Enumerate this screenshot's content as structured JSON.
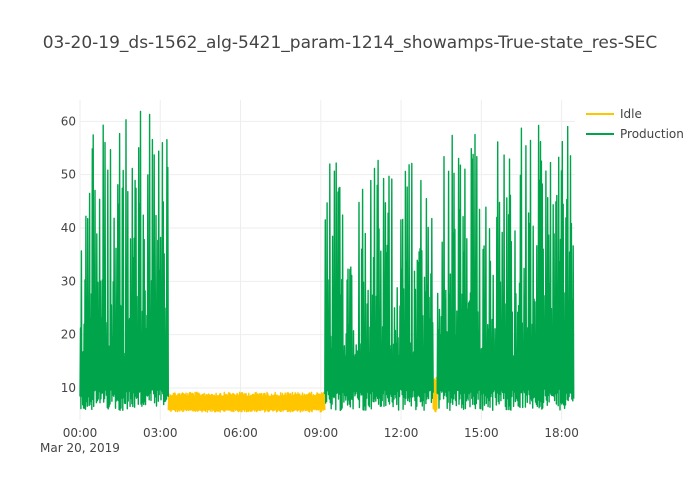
{
  "chart_data": {
    "type": "line",
    "title": "03-20-19_ds-1562_alg-5421_param-1214_showamps-True-state_res-SEC",
    "xlabel": "",
    "ylabel": "",
    "x_range_hours": [
      0,
      18.5
    ],
    "ylim": [
      4,
      64
    ],
    "x_ticks": [
      {
        "hours": 0,
        "label": "00:00"
      },
      {
        "hours": 3,
        "label": "03:00"
      },
      {
        "hours": 6,
        "label": "06:00"
      },
      {
        "hours": 9,
        "label": "09:00"
      },
      {
        "hours": 12,
        "label": "12:00"
      },
      {
        "hours": 15,
        "label": "15:00"
      },
      {
        "hours": 18,
        "label": "18:00"
      }
    ],
    "x_date_label": "Mar 20, 2019",
    "y_ticks": [
      10,
      20,
      30,
      40,
      50,
      60
    ],
    "grid": true,
    "legend_position": "top-right",
    "series": [
      {
        "name": "Idle",
        "color": "#ffc600",
        "segments": [
          {
            "start_hours": 3.3,
            "end_hours": 9.15,
            "min": 5.5,
            "max": 9.2
          },
          {
            "start_hours": 13.2,
            "end_hours": 13.35,
            "min": 5.5,
            "max": 12
          }
        ]
      },
      {
        "name": "Production",
        "color": "#00a44a",
        "segments": [
          {
            "start_hours": 0.0,
            "end_hours": 3.3,
            "min": 5.8,
            "max": 62
          },
          {
            "start_hours": 9.15,
            "end_hours": 13.2,
            "min": 5.8,
            "max": 54
          },
          {
            "start_hours": 13.35,
            "end_hours": 18.45,
            "min": 5.8,
            "max": 60
          }
        ]
      }
    ]
  }
}
